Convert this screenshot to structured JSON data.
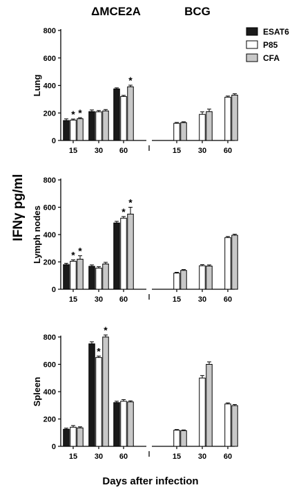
{
  "figure": {
    "group_titles": [
      "ΔMCE2A",
      "BCG"
    ],
    "ylabel": "IFNγ pg/ml",
    "xlabel": "Days after infection"
  },
  "legend": {
    "items": [
      {
        "label": "ESAT6",
        "color": "#1a1a1a"
      },
      {
        "label": "P85",
        "color": "#ffffff"
      },
      {
        "label": "CFA",
        "color": "#c8c8c8"
      }
    ]
  },
  "chart_data": [
    {
      "type": "bar",
      "panel": "Lung",
      "ylabel": "Lung",
      "ylim": [
        0,
        800
      ],
      "yticks": [
        0,
        200,
        400,
        600,
        800
      ],
      "groups": [
        "ΔMCE2A",
        "BCG"
      ],
      "categories": [
        "15",
        "30",
        "60",
        "15",
        "30",
        "60"
      ],
      "series": [
        {
          "name": "ESAT6",
          "values": [
            145,
            210,
            375,
            null,
            null,
            null
          ],
          "errors": [
            12,
            12,
            8,
            null,
            null,
            null
          ]
        },
        {
          "name": "P85",
          "values": [
            148,
            208,
            320,
            125,
            190,
            315
          ],
          "errors": [
            8,
            10,
            8,
            6,
            18,
            8
          ]
        },
        {
          "name": "CFA",
          "values": [
            158,
            215,
            390,
            130,
            210,
            330
          ],
          "errors": [
            8,
            10,
            12,
            6,
            18,
            10
          ]
        }
      ],
      "asterisks": [
        {
          "category_index": 0,
          "series": "P85"
        },
        {
          "category_index": 0,
          "series": "CFA"
        },
        {
          "category_index": 2,
          "series": "CFA"
        }
      ]
    },
    {
      "type": "bar",
      "panel": "Lymph nodes",
      "ylabel": "Lymph nodes",
      "ylim": [
        0,
        800
      ],
      "yticks": [
        0,
        200,
        400,
        600,
        800
      ],
      "groups": [
        "ΔMCE2A",
        "BCG"
      ],
      "categories": [
        "15",
        "30",
        "60",
        "15",
        "30",
        "60"
      ],
      "series": [
        {
          "name": "ESAT6",
          "values": [
            180,
            168,
            485,
            null,
            null,
            null
          ],
          "errors": [
            10,
            10,
            12,
            null,
            null,
            null
          ]
        },
        {
          "name": "P85",
          "values": [
            205,
            155,
            520,
            118,
            172,
            378
          ],
          "errors": [
            10,
            10,
            12,
            6,
            8,
            8
          ]
        },
        {
          "name": "CFA",
          "values": [
            220,
            185,
            550,
            138,
            170,
            395
          ],
          "errors": [
            25,
            12,
            50,
            6,
            8,
            8
          ]
        }
      ],
      "asterisks": [
        {
          "category_index": 0,
          "series": "P85"
        },
        {
          "category_index": 0,
          "series": "CFA"
        },
        {
          "category_index": 2,
          "series": "P85"
        },
        {
          "category_index": 2,
          "series": "CFA"
        }
      ]
    },
    {
      "type": "bar",
      "panel": "Spleen",
      "ylabel": "Spleen",
      "ylim": [
        0,
        800
      ],
      "yticks": [
        0,
        200,
        400,
        600,
        800
      ],
      "groups": [
        "ΔMCE2A",
        "BCG"
      ],
      "categories": [
        "15",
        "30",
        "60",
        "15",
        "30",
        "60"
      ],
      "series": [
        {
          "name": "ESAT6",
          "values": [
            125,
            750,
            320,
            null,
            null,
            null
          ],
          "errors": [
            8,
            15,
            10,
            null,
            null,
            null
          ]
        },
        {
          "name": "P85",
          "values": [
            140,
            650,
            330,
            118,
            500,
            310
          ],
          "errors": [
            12,
            10,
            12,
            5,
            18,
            8
          ]
        },
        {
          "name": "CFA",
          "values": [
            135,
            800,
            325,
            115,
            600,
            298
          ],
          "errors": [
            8,
            15,
            8,
            5,
            18,
            8
          ]
        }
      ],
      "asterisks": [
        {
          "category_index": 1,
          "series": "P85"
        },
        {
          "category_index": 1,
          "series": "CFA"
        }
      ]
    }
  ]
}
